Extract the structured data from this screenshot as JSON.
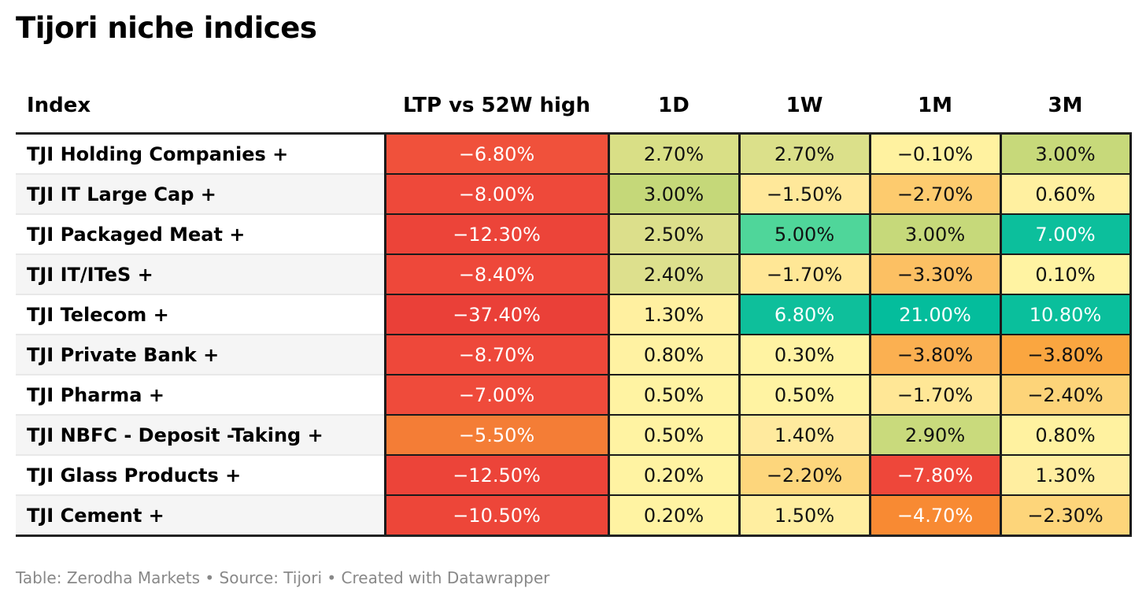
{
  "title": "Tijori niche indices",
  "footer": "Table: Zerodha Markets • Source: Tijori • Created with Datawrapper",
  "chart_data": {
    "type": "table",
    "columns": [
      "Index",
      "LTP vs 52W high",
      "1D",
      "1W",
      "1M",
      "3M"
    ],
    "rows": [
      {
        "index": "TJI Holding Companies +",
        "values": [
          "−6.80%",
          "2.70%",
          "2.70%",
          "−0.10%",
          "3.00%"
        ],
        "colors": [
          "#f0513b",
          "#d9df86",
          "#dbe08a",
          "#fff2a0",
          "#c7d97a"
        ]
      },
      {
        "index": "TJI IT Large Cap +",
        "values": [
          "−8.00%",
          "3.00%",
          "−1.50%",
          "−2.70%",
          "0.60%"
        ],
        "colors": [
          "#ee493a",
          "#c5d879",
          "#ffe89a",
          "#fdcb6e",
          "#fff0a0"
        ]
      },
      {
        "index": "TJI Packaged Meat +",
        "values": [
          "−12.30%",
          "2.50%",
          "5.00%",
          "3.00%",
          "7.00%"
        ],
        "colors": [
          "#ec4439",
          "#dcdf8b",
          "#4fd69a",
          "#c6d97a",
          "#0cbf9c"
        ]
      },
      {
        "index": "TJI IT/ITeS +",
        "values": [
          "−8.40%",
          "2.40%",
          "−1.70%",
          "−3.30%",
          "0.10%"
        ],
        "colors": [
          "#ee483a",
          "#dde08d",
          "#ffe796",
          "#fcc063",
          "#fff3a2"
        ]
      },
      {
        "index": "TJI Telecom +",
        "values": [
          "−37.40%",
          "1.30%",
          "6.80%",
          "21.00%",
          "10.80%"
        ],
        "colors": [
          "#ea4038",
          "#fff0a0",
          "#0ebf9b",
          "#04bd9c",
          "#0abf9c"
        ]
      },
      {
        "index": "TJI Private Bank +",
        "values": [
          "−8.70%",
          "0.80%",
          "0.30%",
          "−3.80%",
          "−3.80%"
        ],
        "colors": [
          "#ee483a",
          "#fff2a2",
          "#fff3a2",
          "#fbb051",
          "#faa640"
        ]
      },
      {
        "index": "TJI Pharma +",
        "values": [
          "−7.00%",
          "0.50%",
          "0.50%",
          "−1.70%",
          "−2.40%"
        ],
        "colors": [
          "#ef4b3b",
          "#fff3a2",
          "#fff3a2",
          "#ffe796",
          "#fdd479"
        ]
      },
      {
        "index": "TJI NBFC - Deposit -Taking +",
        "values": [
          "−5.50%",
          "0.50%",
          "1.40%",
          "2.90%",
          "0.80%"
        ],
        "colors": [
          "#f47d36",
          "#fff3a2",
          "#ffea9e",
          "#c9da7c",
          "#fff2a0"
        ]
      },
      {
        "index": "TJI Glass Products +",
        "values": [
          "−12.50%",
          "0.20%",
          "−2.20%",
          "−7.80%",
          "1.30%"
        ],
        "colors": [
          "#ec4439",
          "#fff3a2",
          "#fdd67c",
          "#ee473a",
          "#ffeea0"
        ]
      },
      {
        "index": "TJI Cement +",
        "values": [
          "−10.50%",
          "0.20%",
          "1.50%",
          "−4.70%",
          "−2.30%"
        ],
        "colors": [
          "#ed4639",
          "#fff3a2",
          "#ffeea0",
          "#f88a33",
          "#fdd57a"
        ]
      }
    ]
  }
}
